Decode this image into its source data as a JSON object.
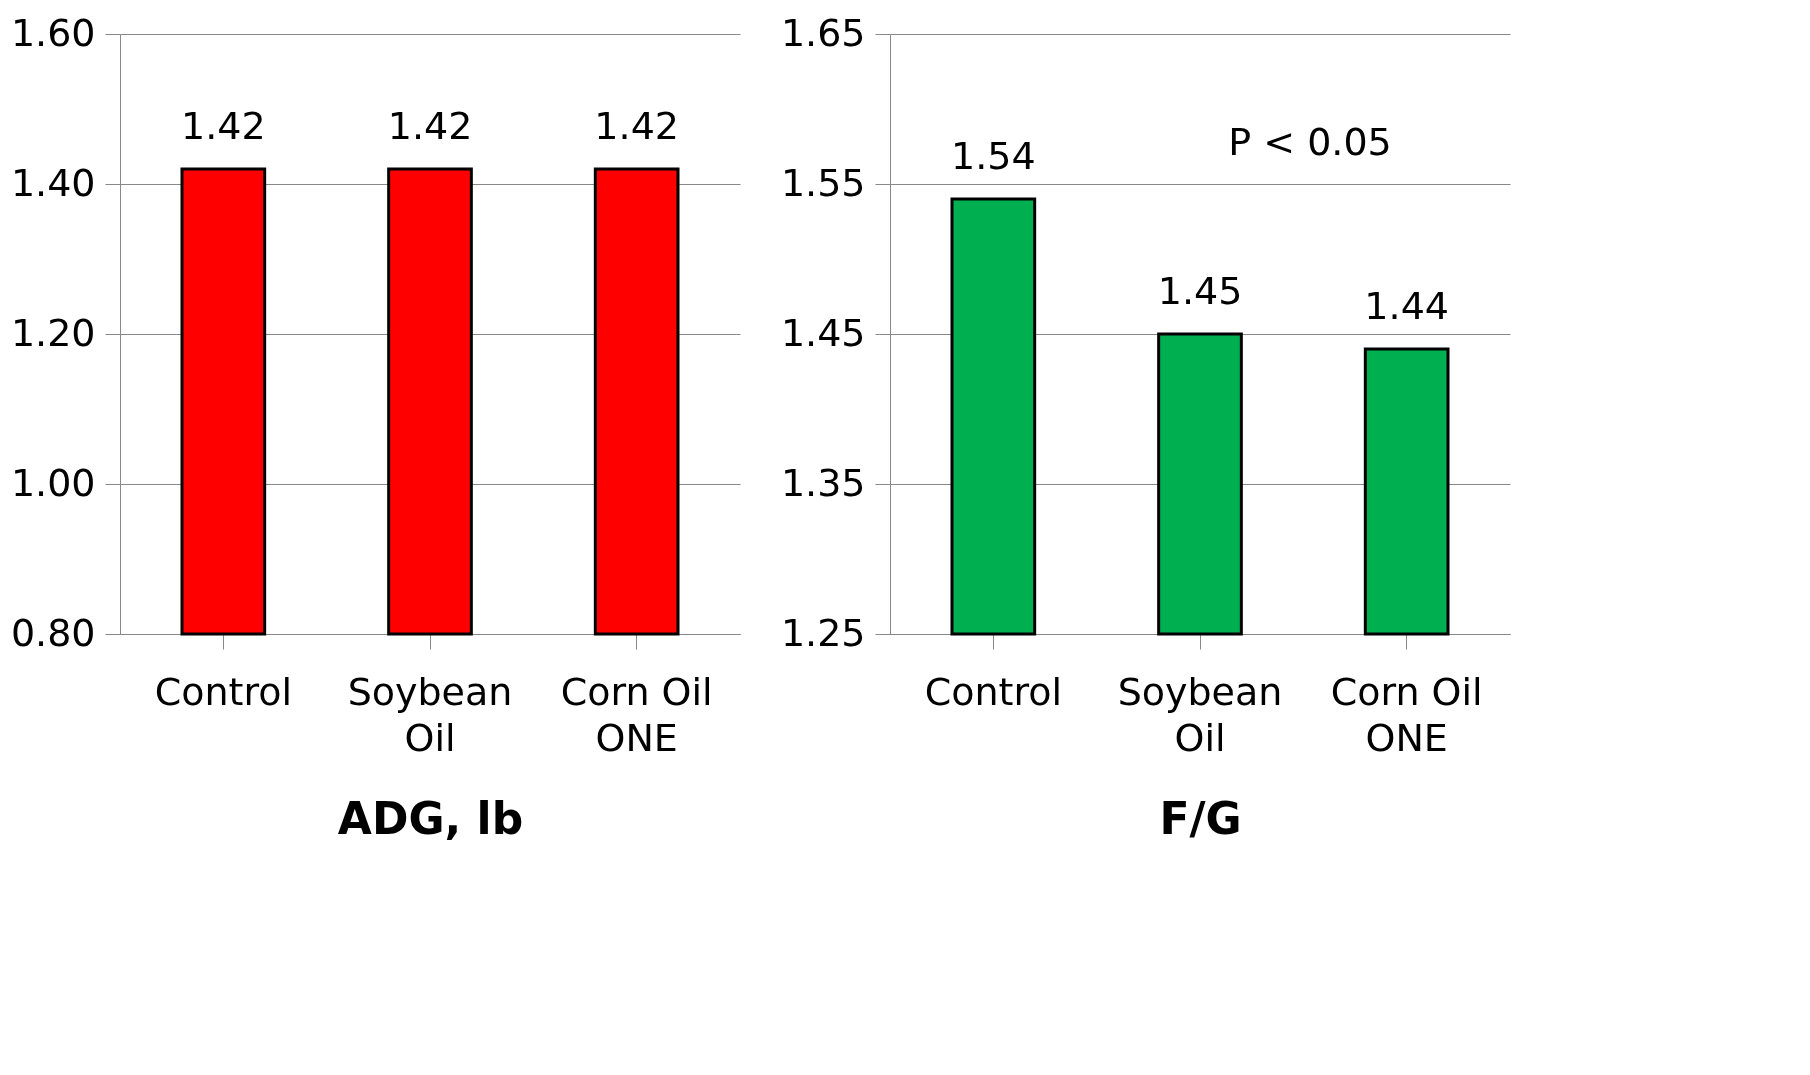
{
  "chart_data": [
    {
      "type": "bar",
      "xlabel": "ADG, lb",
      "categories": [
        "Control",
        "Soybean Oil",
        "Corn Oil ONE"
      ],
      "values": [
        1.42,
        1.42,
        1.42
      ],
      "color": "#ff0000",
      "ylim": [
        0.8,
        1.6
      ],
      "yticks": [
        {
          "value": 0.8,
          "label": "0.80"
        },
        {
          "value": 1.0,
          "label": "1.00"
        },
        {
          "value": 1.2,
          "label": "1.20"
        },
        {
          "value": 1.4,
          "label": "1.40"
        },
        {
          "value": 1.6,
          "label": "1.60"
        }
      ],
      "grid": "y",
      "data_labels": true
    },
    {
      "type": "bar",
      "xlabel": "F/G",
      "categories": [
        "Control",
        "Soybean Oil",
        "Corn Oil ONE"
      ],
      "values": [
        1.54,
        1.45,
        1.44
      ],
      "color": "#00b050",
      "ylim": [
        1.25,
        1.65
      ],
      "yticks": [
        1.25,
        1.35,
        1.45,
        1.55,
        1.65
      ],
      "grid": "y",
      "data_labels": true,
      "annotations": [
        "P < 0.05"
      ]
    }
  ]
}
